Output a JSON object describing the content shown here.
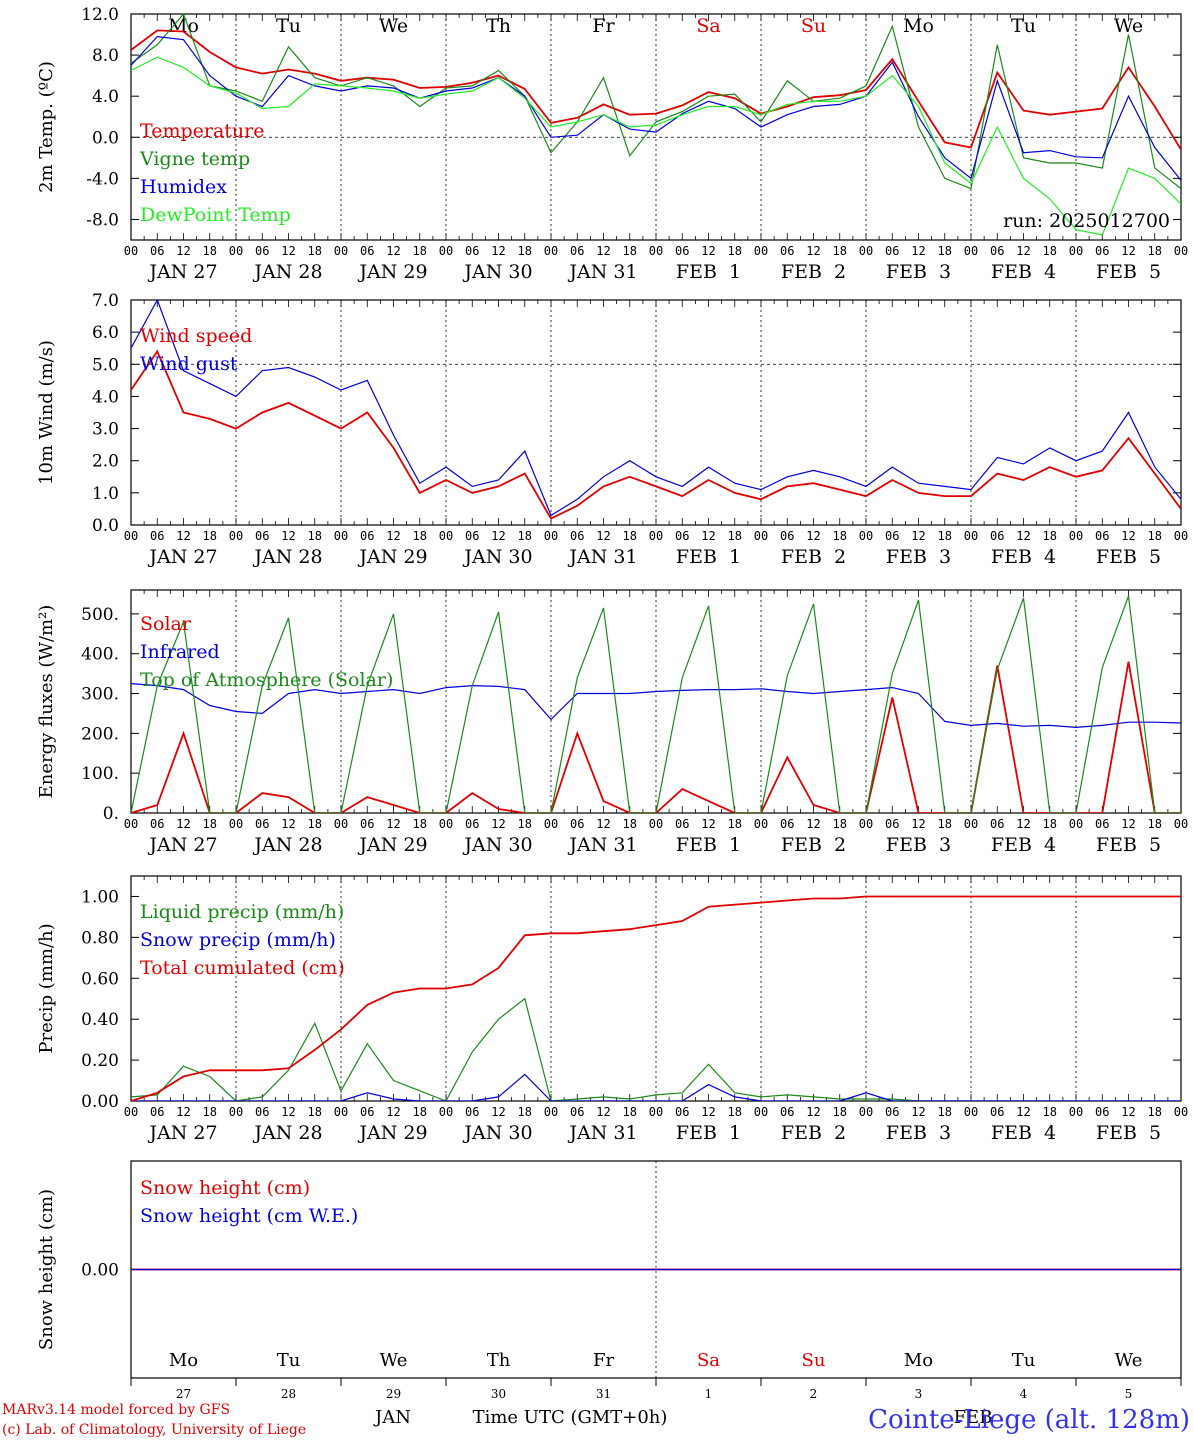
{
  "days": [
    "Mo",
    "Tu",
    "We",
    "Th",
    "Fr",
    "Sa",
    "Su",
    "Mo",
    "Tu",
    "We"
  ],
  "day_colors": [
    "#000",
    "#000",
    "#000",
    "#000",
    "#000",
    "#e00000",
    "#e00000",
    "#000",
    "#000",
    "#000"
  ],
  "date_labels": [
    "JAN 27",
    "JAN 28",
    "JAN 29",
    "JAN 30",
    "JAN 31",
    "FEB  1",
    "FEB  2",
    "FEB  3",
    "FEB  4",
    "FEB  5"
  ],
  "hour_ticks": [
    "00",
    "06",
    "12",
    "18"
  ],
  "final_hour": "00",
  "bottom_day_numbers": [
    "27",
    "28",
    "29",
    "30",
    "31",
    "1",
    "2",
    "3",
    "4",
    "5"
  ],
  "footer": {
    "month_jan": "JAN",
    "month_feb": "FEB",
    "time_label": "Time UTC (GMT+0h)",
    "model_line": "MARv3.14 model forced by GFS",
    "credit_line": "(c) Lab. of Climatology, University of Liege",
    "station": "Cointe-Liege (alt. 128m)"
  },
  "colors": {
    "red": "#e00000",
    "green": "#1a8a1a",
    "blue": "#0000dd",
    "light_green": "#22ee22"
  },
  "chart_data": [
    {
      "type": "line",
      "ylabel": "2m Temp. (ºC)",
      "ylim": [
        -10,
        12
      ],
      "yticks": [
        12,
        8,
        4,
        0,
        -4,
        -8
      ],
      "ytick_labels": [
        "12.0",
        "8.0",
        "4.0",
        "0.0",
        "-4.0",
        "-8.0"
      ],
      "dashed_y": 0,
      "annotation": "run: 2025012700",
      "x_hours": [
        0,
        6,
        12,
        18,
        24,
        30,
        36,
        42,
        48,
        54,
        60,
        66,
        72,
        78,
        84,
        90,
        96,
        102,
        108,
        114,
        120,
        126,
        132,
        138,
        144,
        150,
        156,
        162,
        168,
        174,
        180,
        186,
        192,
        198,
        204,
        210,
        216,
        222,
        228,
        234,
        240
      ],
      "series": [
        {
          "name": "Temperature",
          "color": "red",
          "values": [
            8.5,
            10.4,
            10.3,
            8.3,
            6.8,
            6.2,
            6.6,
            6.2,
            5.5,
            5.8,
            5.6,
            4.8,
            4.9,
            5.3,
            6.0,
            4.7,
            1.4,
            1.9,
            3.2,
            2.2,
            2.3,
            3.1,
            4.4,
            3.8,
            2.3,
            3.0,
            3.9,
            4.1,
            4.6,
            7.6,
            3.5,
            -0.5,
            -1.0,
            6.3,
            2.6,
            2.2,
            2.5,
            2.8,
            6.8,
            3.0,
            -1.2
          ]
        },
        {
          "name": "Vigne temp",
          "color": "green",
          "values": [
            7.2,
            9.0,
            12.0,
            5.0,
            4.5,
            3.5,
            8.8,
            5.8,
            5.0,
            5.8,
            5.0,
            3.0,
            4.8,
            5.0,
            6.5,
            4.0,
            -1.5,
            1.5,
            5.8,
            -1.8,
            1.5,
            2.5,
            4.0,
            4.2,
            1.5,
            5.5,
            3.5,
            3.8,
            5.0,
            10.8,
            1.0,
            -4.0,
            -5.0,
            9.0,
            -2.0,
            -2.5,
            -2.5,
            -3.0,
            10.0,
            -3.0,
            -5.0
          ]
        },
        {
          "name": "Humidex",
          "color": "blue",
          "values": [
            7.0,
            9.8,
            9.5,
            6.0,
            4.0,
            3.0,
            6.0,
            5.0,
            4.5,
            5.0,
            4.8,
            3.8,
            4.5,
            4.8,
            5.8,
            4.0,
            0.0,
            0.2,
            2.2,
            0.8,
            0.5,
            2.3,
            3.5,
            2.8,
            1.0,
            2.2,
            3.0,
            3.2,
            4.0,
            7.3,
            2.0,
            -2.0,
            -4.0,
            5.5,
            -1.5,
            -1.3,
            -1.9,
            -2.0,
            4.0,
            -1.0,
            -4.2
          ]
        },
        {
          "name": "DewPoint Temp",
          "color": "light_green",
          "values": [
            6.5,
            7.8,
            6.8,
            5.0,
            4.3,
            2.8,
            3.0,
            5.2,
            5.0,
            4.8,
            4.5,
            3.8,
            4.2,
            4.5,
            5.8,
            3.8,
            1.0,
            1.5,
            2.2,
            1.0,
            1.2,
            2.2,
            3.0,
            3.0,
            2.2,
            3.2,
            3.5,
            3.5,
            4.0,
            6.0,
            3.0,
            -2.5,
            -4.5,
            1.0,
            -4.0,
            -6.0,
            -9.0,
            -9.5,
            -3.0,
            -4.0,
            -6.5
          ]
        }
      ]
    },
    {
      "type": "line",
      "ylabel": "10m Wind (m/s)",
      "ylim": [
        0,
        7
      ],
      "yticks": [
        7,
        6,
        5,
        4,
        3,
        2,
        1,
        0
      ],
      "ytick_labels": [
        "7.0",
        "6.0",
        "5.0",
        "4.0",
        "3.0",
        "2.0",
        "1.0",
        "0.0"
      ],
      "dashed_y": 5,
      "x_hours": [
        0,
        6,
        12,
        18,
        24,
        30,
        36,
        42,
        48,
        54,
        60,
        66,
        72,
        78,
        84,
        90,
        96,
        102,
        108,
        114,
        120,
        126,
        132,
        138,
        144,
        150,
        156,
        162,
        168,
        174,
        180,
        186,
        192,
        198,
        204,
        210,
        216,
        222,
        228,
        234,
        240
      ],
      "series": [
        {
          "name": "Wind speed",
          "color": "red",
          "values": [
            4.2,
            5.4,
            3.5,
            3.3,
            3.0,
            3.5,
            3.8,
            3.4,
            3.0,
            3.5,
            2.4,
            1.0,
            1.4,
            1.0,
            1.2,
            1.6,
            0.2,
            0.6,
            1.2,
            1.5,
            1.2,
            0.9,
            1.4,
            1.0,
            0.8,
            1.2,
            1.3,
            1.1,
            0.9,
            1.4,
            1.0,
            0.9,
            0.9,
            1.6,
            1.4,
            1.8,
            1.5,
            1.7,
            2.7,
            1.6,
            0.5
          ]
        },
        {
          "name": "Wind gust",
          "color": "blue",
          "values": [
            5.5,
            7.0,
            4.8,
            4.4,
            4.0,
            4.8,
            4.9,
            4.6,
            4.2,
            4.5,
            2.8,
            1.3,
            1.8,
            1.2,
            1.4,
            2.3,
            0.3,
            0.8,
            1.5,
            2.0,
            1.5,
            1.2,
            1.8,
            1.3,
            1.1,
            1.5,
            1.7,
            1.5,
            1.2,
            1.8,
            1.3,
            1.2,
            1.1,
            2.1,
            1.9,
            2.4,
            2.0,
            2.3,
            3.5,
            1.8,
            0.8
          ]
        }
      ]
    },
    {
      "type": "line",
      "ylabel": "Energy fluxes (W/m²)",
      "ylim": [
        0,
        560
      ],
      "yticks": [
        500,
        400,
        300,
        200,
        100,
        0
      ],
      "ytick_labels": [
        "500.",
        "400.",
        "300.",
        "200.",
        "100.",
        "0."
      ],
      "dashed_y": null,
      "x_hours": [
        0,
        6,
        12,
        18,
        24,
        30,
        36,
        42,
        48,
        54,
        60,
        66,
        72,
        78,
        84,
        90,
        96,
        102,
        108,
        114,
        120,
        126,
        132,
        138,
        144,
        150,
        156,
        162,
        168,
        174,
        180,
        186,
        192,
        198,
        204,
        210,
        216,
        222,
        228,
        234,
        240
      ],
      "series": [
        {
          "name": "Solar",
          "color": "red",
          "values": [
            0,
            20,
            200,
            0,
            0,
            50,
            40,
            0,
            0,
            40,
            20,
            0,
            0,
            50,
            10,
            0,
            0,
            200,
            30,
            0,
            0,
            60,
            30,
            0,
            0,
            140,
            20,
            0,
            0,
            290,
            0,
            0,
            0,
            370,
            0,
            0,
            0,
            0,
            380,
            0,
            0
          ]
        },
        {
          "name": "Infrared",
          "color": "blue",
          "values": [
            325,
            320,
            310,
            270,
            255,
            250,
            300,
            310,
            300,
            305,
            310,
            300,
            315,
            320,
            318,
            310,
            235,
            300,
            300,
            300,
            305,
            308,
            310,
            310,
            312,
            305,
            300,
            305,
            310,
            315,
            300,
            230,
            220,
            225,
            218,
            220,
            215,
            220,
            228,
            228,
            226
          ]
        },
        {
          "name": "Top of Atmosphere (Solar)",
          "color": "green",
          "values": [
            0,
            320,
            480,
            0,
            0,
            320,
            490,
            0,
            0,
            320,
            500,
            0,
            0,
            320,
            505,
            0,
            0,
            340,
            515,
            0,
            0,
            340,
            520,
            0,
            0,
            345,
            525,
            0,
            0,
            350,
            535,
            0,
            0,
            360,
            540,
            0,
            0,
            365,
            545,
            0,
            0
          ]
        }
      ]
    },
    {
      "type": "line",
      "ylabel": "Precip (mm/h)",
      "ylim": [
        0,
        1.1
      ],
      "yticks": [
        1.0,
        0.8,
        0.6,
        0.4,
        0.2,
        0.0
      ],
      "ytick_labels": [
        "1.00",
        "0.80",
        "0.60",
        "0.40",
        "0.20",
        "0.00"
      ],
      "dashed_y": null,
      "x_hours": [
        0,
        6,
        12,
        18,
        24,
        30,
        36,
        42,
        48,
        54,
        60,
        66,
        72,
        78,
        84,
        90,
        96,
        102,
        108,
        114,
        120,
        126,
        132,
        138,
        144,
        150,
        156,
        162,
        168,
        174,
        180,
        186,
        192,
        198,
        204,
        210,
        216,
        222,
        228,
        234,
        240
      ],
      "series": [
        {
          "name": "Liquid precip (mm/h)",
          "color": "green",
          "values": [
            0.02,
            0.03,
            0.17,
            0.12,
            0.0,
            0.02,
            0.15,
            0.38,
            0.05,
            0.28,
            0.1,
            0.05,
            0.0,
            0.24,
            0.4,
            0.5,
            0.0,
            0.01,
            0.02,
            0.01,
            0.03,
            0.04,
            0.18,
            0.04,
            0.02,
            0.03,
            0.02,
            0.01,
            0.01,
            0.01,
            0.0,
            0.0,
            0.0,
            0.0,
            0.0,
            0.0,
            0.0,
            0.0,
            0.0,
            0.0,
            0.0
          ]
        },
        {
          "name": "Snow precip (mm/h)",
          "color": "blue",
          "values": [
            0,
            0,
            0,
            0,
            0,
            0,
            0,
            0,
            0,
            0.04,
            0.01,
            0,
            0,
            0,
            0.02,
            0.13,
            0,
            0,
            0,
            0,
            0,
            0,
            0.08,
            0.02,
            0,
            0,
            0,
            0,
            0.04,
            0,
            0,
            0,
            0,
            0,
            0,
            0,
            0,
            0,
            0,
            0,
            0
          ]
        },
        {
          "name": "Total cumulated (cm)",
          "color": "red",
          "values": [
            0.0,
            0.04,
            0.12,
            0.15,
            0.15,
            0.15,
            0.16,
            0.25,
            0.35,
            0.47,
            0.53,
            0.55,
            0.55,
            0.57,
            0.65,
            0.81,
            0.82,
            0.82,
            0.83,
            0.84,
            0.86,
            0.88,
            0.95,
            0.96,
            0.97,
            0.98,
            0.99,
            0.99,
            1.0,
            1.0,
            1.0,
            1.0,
            1.0,
            1.0,
            1.0,
            1.0,
            1.0,
            1.0,
            1.0,
            1.0,
            1.0
          ]
        }
      ]
    },
    {
      "type": "line",
      "ylabel": "Snow height (cm)",
      "ylim": [
        -1,
        1
      ],
      "yticks": [
        0
      ],
      "ytick_labels": [
        "0.00"
      ],
      "dashed_y": null,
      "x_hours": [
        0,
        240
      ],
      "series": [
        {
          "name": "Snow height (cm)",
          "color": "red",
          "values": [
            0,
            0
          ]
        },
        {
          "name": "Snow height (cm W.E.)",
          "color": "blue",
          "values": [
            0,
            0
          ]
        }
      ]
    }
  ]
}
